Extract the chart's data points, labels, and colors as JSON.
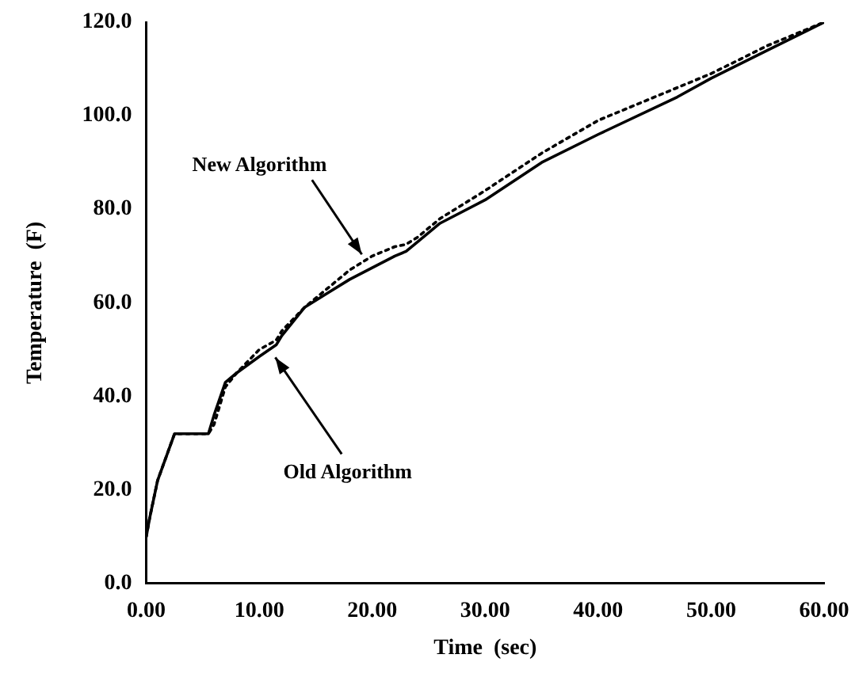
{
  "chart_data": {
    "type": "line",
    "xlabel": "Time  (sec)",
    "ylabel": "Temperature  (F)",
    "xlim": [
      0,
      60
    ],
    "ylim": [
      0,
      120
    ],
    "xticks": [
      {
        "value": 0,
        "label": "0.00"
      },
      {
        "value": 10,
        "label": "10.00"
      },
      {
        "value": 20,
        "label": "20.00"
      },
      {
        "value": 30,
        "label": "30.00"
      },
      {
        "value": 40,
        "label": "40.00"
      },
      {
        "value": 50,
        "label": "50.00"
      },
      {
        "value": 60,
        "label": "60.00"
      }
    ],
    "yticks": [
      {
        "value": 0,
        "label": "0.0"
      },
      {
        "value": 20,
        "label": "20.0"
      },
      {
        "value": 40,
        "label": "40.0"
      },
      {
        "value": 60,
        "label": "60.0"
      },
      {
        "value": 80,
        "label": "80.0"
      },
      {
        "value": 100,
        "label": "100.0"
      },
      {
        "value": 120,
        "label": "120.0"
      }
    ],
    "grid": false,
    "legend": false,
    "marker": "none",
    "series": [
      {
        "color": "#000000",
        "line_style": "solid",
        "x": [
          0,
          0.3,
          1,
          2.5,
          5.5,
          6,
          7,
          8,
          10,
          11.5,
          12,
          14,
          16,
          18,
          20,
          22,
          23,
          24,
          26,
          30,
          35,
          40,
          47,
          50,
          55,
          60
        ],
        "values": [
          10,
          14,
          22,
          32,
          32,
          36,
          43,
          45,
          48.5,
          51,
          53,
          59,
          62,
          65,
          67.5,
          70,
          71,
          73,
          77,
          82,
          90,
          96,
          104,
          108,
          114,
          120
        ]
      },
      {
        "color": "#000000",
        "line_style": "dotted",
        "x": [
          0,
          0.3,
          1,
          2.5,
          5.5,
          6,
          7,
          8,
          10,
          11.5,
          12,
          14,
          16,
          18,
          20,
          22,
          23,
          24,
          26,
          30,
          35,
          40,
          47,
          50,
          55,
          60
        ],
        "values": [
          10,
          14,
          22,
          32,
          32,
          34,
          42,
          45,
          50,
          52,
          54,
          59,
          63,
          67,
          70,
          72,
          72.5,
          74,
          78,
          84,
          92,
          99,
          106,
          109,
          115,
          120
        ]
      }
    ],
    "annotations": [
      {
        "text": "New Algorithm",
        "x": 19.5,
        "y": 69
      },
      {
        "text": "Old Algorithm",
        "x": 11,
        "y": 50
      }
    ]
  }
}
